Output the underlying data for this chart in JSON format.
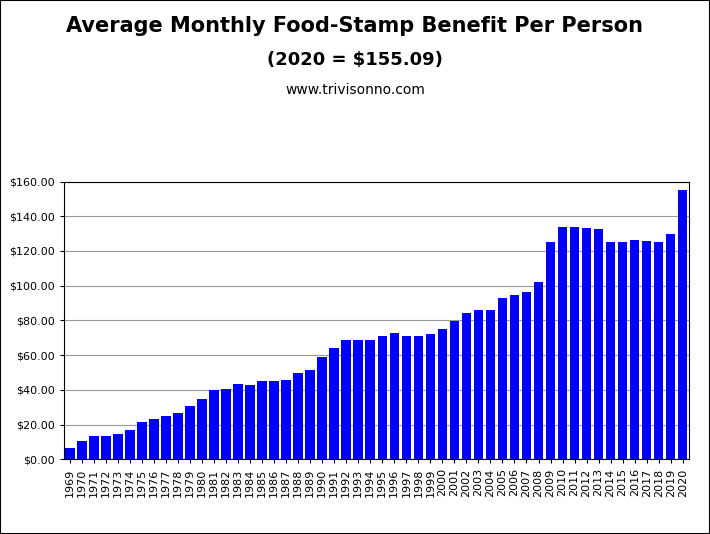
{
  "title_line1": "Average Monthly Food-Stamp Benefit Per Person",
  "title_line2": "(2020 = $155.09)",
  "subtitle": "www.trivisonno.com",
  "bar_color": "#0000FF",
  "background_color": "#FFFFFF",
  "years": [
    1969,
    1970,
    1971,
    1972,
    1973,
    1974,
    1975,
    1976,
    1977,
    1978,
    1979,
    1980,
    1981,
    1982,
    1983,
    1984,
    1985,
    1986,
    1987,
    1988,
    1989,
    1990,
    1991,
    1992,
    1993,
    1994,
    1995,
    1996,
    1997,
    1998,
    1999,
    2000,
    2001,
    2002,
    2003,
    2004,
    2005,
    2006,
    2007,
    2008,
    2009,
    2010,
    2011,
    2012,
    2013,
    2014,
    2015,
    2016,
    2017,
    2018,
    2019,
    2020
  ],
  "values": [
    6.63,
    10.55,
    13.54,
    13.54,
    14.57,
    16.97,
    21.4,
    23.4,
    24.78,
    26.81,
    30.58,
    34.47,
    39.65,
    40.23,
    43.11,
    42.98,
    44.95,
    45.2,
    45.79,
    49.87,
    51.69,
    59.01,
    63.98,
    68.53,
    68.49,
    68.67,
    71.27,
    72.69,
    71.27,
    71.27,
    72.27,
    74.82,
    79.67,
    84.46,
    85.89,
    86.24,
    92.78,
    94.75,
    96.18,
    102.19,
    125.31,
    133.79,
    133.79,
    133.45,
    132.86,
    125.31,
    125.31,
    126.39,
    125.62,
    125.31,
    129.83,
    155.09
  ],
  "ylim": [
    0,
    160
  ],
  "yticks": [
    0,
    20,
    40,
    60,
    80,
    100,
    120,
    140,
    160
  ],
  "grid_color": "#999999",
  "title_fontsize": 15,
  "subtitle_fontsize": 13,
  "source_fontsize": 10,
  "tick_fontsize": 8,
  "border_color": "#000000"
}
